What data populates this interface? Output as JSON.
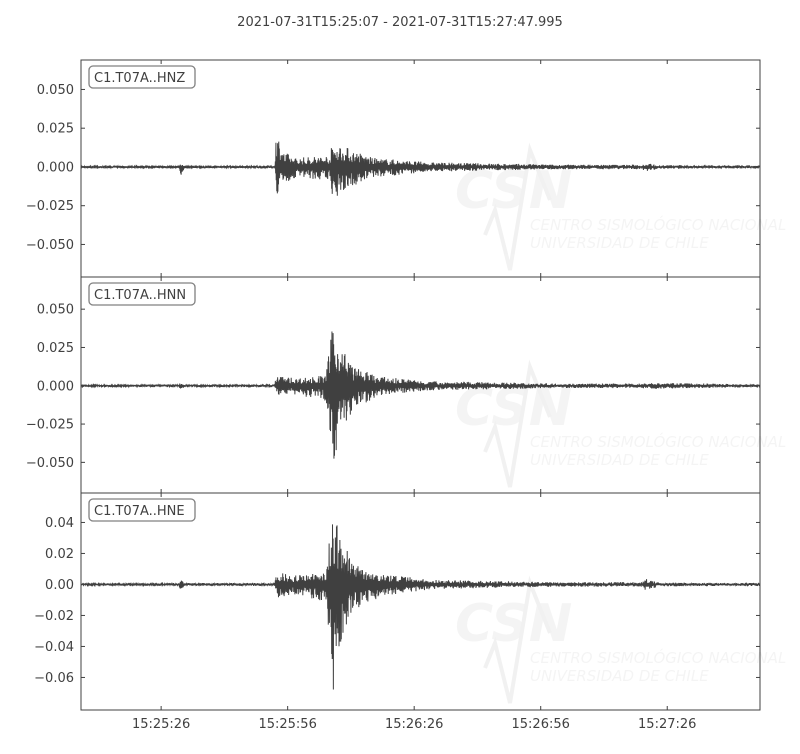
{
  "chart_data": {
    "type": "line",
    "title": "2021-07-31T15:25:07  -  2021-07-31T15:27:47.995",
    "xlim": [
      "15:25:07",
      "15:27:47.995"
    ],
    "x_ticks": [
      "15:25:26",
      "15:25:56",
      "15:26:26",
      "15:26:56",
      "15:27:26"
    ],
    "line_color": "#404040",
    "grid": false,
    "watermark": {
      "logo": "CSN",
      "line1": "CENTRO SISMOLÓGICO NACIONAL",
      "line2": "UNIVERSIDAD DE CHILE"
    },
    "traces": [
      {
        "label": "C1.T07A..HNZ",
        "ylim": [
          -0.071,
          0.069
        ],
        "y_ticks": [
          "0.050",
          "0.025",
          "0.000",
          "−0.025",
          "−0.050"
        ],
        "y_tick_values": [
          0.05,
          0.025,
          0,
          -0.025,
          -0.05
        ],
        "envelope": [
          [
            "15:25:07",
            0.0008,
            -0.0008
          ],
          [
            "15:25:30",
            0.0009,
            -0.0009
          ],
          [
            "15:25:30.7",
            0.003,
            -0.006
          ],
          [
            "15:25:31.5",
            0.0009,
            -0.0009
          ],
          [
            "15:25:53",
            0.001,
            -0.001
          ],
          [
            "15:25:53.2",
            0.027,
            -0.021
          ],
          [
            "15:25:55",
            0.01,
            -0.012
          ],
          [
            "15:25:58",
            0.006,
            -0.007
          ],
          [
            "15:26:06",
            0.008,
            -0.009
          ],
          [
            "15:26:06.7",
            0.017,
            -0.021
          ],
          [
            "15:26:10",
            0.013,
            -0.015
          ],
          [
            "15:26:16",
            0.006,
            -0.007
          ],
          [
            "15:26:30",
            0.003,
            -0.003
          ],
          [
            "15:27:00",
            0.0015,
            -0.0015
          ],
          [
            "15:27:20",
            0.0015,
            -0.0015
          ],
          [
            "15:27:21",
            0.0025,
            -0.003
          ],
          [
            "15:27:24",
            0.0012,
            -0.0012
          ],
          [
            "15:27:47.995",
            0.001,
            -0.001
          ]
        ]
      },
      {
        "label": "C1.T07A..HNN",
        "ylim": [
          -0.07,
          0.071
        ],
        "y_ticks": [
          "0.050",
          "0.025",
          "0.000",
          "−0.025",
          "−0.050"
        ],
        "y_tick_values": [
          0.05,
          0.025,
          0,
          -0.025,
          -0.05
        ],
        "envelope": [
          [
            "15:25:07",
            0.0008,
            -0.0008
          ],
          [
            "15:25:30",
            0.0009,
            -0.0009
          ],
          [
            "15:25:30.7",
            0.002,
            -0.003
          ],
          [
            "15:25:31.5",
            0.0009,
            -0.0009
          ],
          [
            "15:25:53",
            0.001,
            -0.001
          ],
          [
            "15:25:53.2",
            0.007,
            -0.006
          ],
          [
            "15:25:58",
            0.005,
            -0.006
          ],
          [
            "15:26:05",
            0.007,
            -0.01
          ],
          [
            "15:26:06.7",
            0.04,
            -0.05
          ],
          [
            "15:26:09",
            0.025,
            -0.03
          ],
          [
            "15:26:12",
            0.012,
            -0.015
          ],
          [
            "15:26:18",
            0.006,
            -0.006
          ],
          [
            "15:26:30",
            0.003,
            -0.003
          ],
          [
            "15:27:00",
            0.0015,
            -0.0015
          ],
          [
            "15:27:20",
            0.0015,
            -0.0015
          ],
          [
            "15:27:21",
            0.002,
            -0.002
          ],
          [
            "15:27:47.995",
            0.001,
            -0.001
          ]
        ]
      },
      {
        "label": "C1.T07A..HNE",
        "ylim": [
          -0.081,
          0.059
        ],
        "y_ticks": [
          "0.04",
          "0.02",
          "0.00",
          "−0.02",
          "−0.04",
          "−0.06"
        ],
        "y_tick_values": [
          0.04,
          0.02,
          0,
          -0.02,
          -0.04,
          -0.06
        ],
        "envelope": [
          [
            "15:25:07",
            0.0008,
            -0.0008
          ],
          [
            "15:25:30",
            0.0009,
            -0.0009
          ],
          [
            "15:25:30.7",
            0.003,
            -0.004
          ],
          [
            "15:25:31.5",
            0.0009,
            -0.0009
          ],
          [
            "15:25:53",
            0.001,
            -0.001
          ],
          [
            "15:25:53.2",
            0.008,
            -0.009
          ],
          [
            "15:25:58",
            0.006,
            -0.007
          ],
          [
            "15:26:05",
            0.008,
            -0.012
          ],
          [
            "15:26:06.7",
            0.046,
            -0.076
          ],
          [
            "15:26:09",
            0.028,
            -0.035
          ],
          [
            "15:26:12",
            0.014,
            -0.016
          ],
          [
            "15:26:18",
            0.007,
            -0.008
          ],
          [
            "15:26:30",
            0.003,
            -0.003
          ],
          [
            "15:27:00",
            0.0015,
            -0.0015
          ],
          [
            "15:27:20",
            0.0015,
            -0.0015
          ],
          [
            "15:27:21",
            0.0035,
            -0.004
          ],
          [
            "15:27:24",
            0.0012,
            -0.0012
          ],
          [
            "15:27:47.995",
            0.001,
            -0.001
          ]
        ]
      }
    ]
  }
}
